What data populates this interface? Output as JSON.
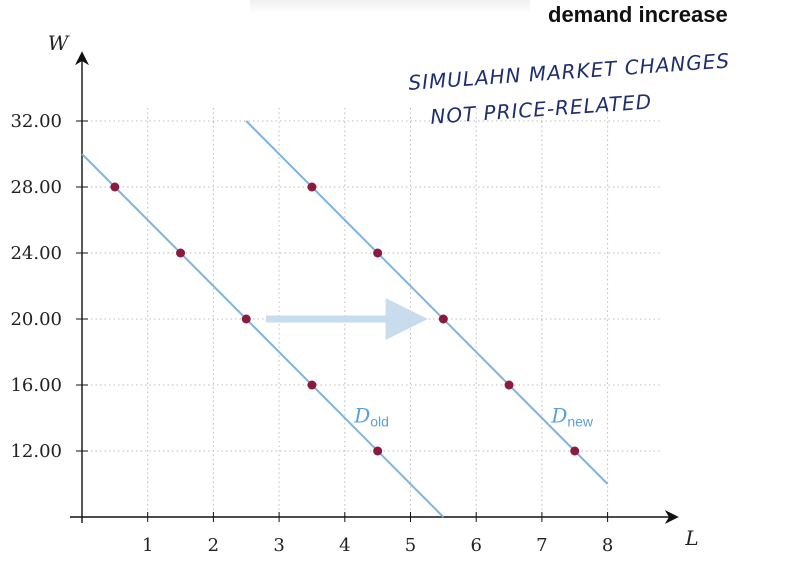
{
  "title": "demand increase",
  "annotation": {
    "line1": "SIMULAHN MARKET CHANGES",
    "line2": "NOT PRICE-RELATED"
  },
  "colors": {
    "line": "#7fb3e0",
    "point": "#8b1a3f",
    "arrow": "#c8dcee",
    "grid": "#bdbdbd",
    "axis": "#111111",
    "label": "#5aa0d8"
  },
  "chart_data": {
    "type": "line",
    "xlabel": "L",
    "ylabel": "W",
    "xlim": [
      0,
      9
    ],
    "ylim": [
      8,
      36
    ],
    "x_ticks": [
      "1",
      "2",
      "3",
      "4",
      "5",
      "6",
      "7",
      "8"
    ],
    "y_ticks": [
      "12.00",
      "16.00",
      "20.00",
      "24.00",
      "28.00",
      "32.00"
    ],
    "grid": true,
    "series": [
      {
        "name": "D_old",
        "label_main": "D",
        "label_sub": "old",
        "line": [
          [
            0,
            30
          ],
          [
            5.5,
            8
          ]
        ],
        "points": [
          [
            0.5,
            28
          ],
          [
            1.5,
            24
          ],
          [
            2.5,
            20
          ],
          [
            3.5,
            16
          ],
          [
            4.5,
            12
          ]
        ]
      },
      {
        "name": "D_new",
        "label_main": "D",
        "label_sub": "new",
        "line": [
          [
            2.5,
            32
          ],
          [
            8,
            10
          ]
        ],
        "points": [
          [
            3.5,
            28
          ],
          [
            4.5,
            24
          ],
          [
            5.5,
            20
          ],
          [
            6.5,
            16
          ],
          [
            7.5,
            12
          ]
        ]
      }
    ],
    "shift_arrow": {
      "from": [
        2.8,
        20
      ],
      "to": [
        5.2,
        20
      ]
    }
  }
}
